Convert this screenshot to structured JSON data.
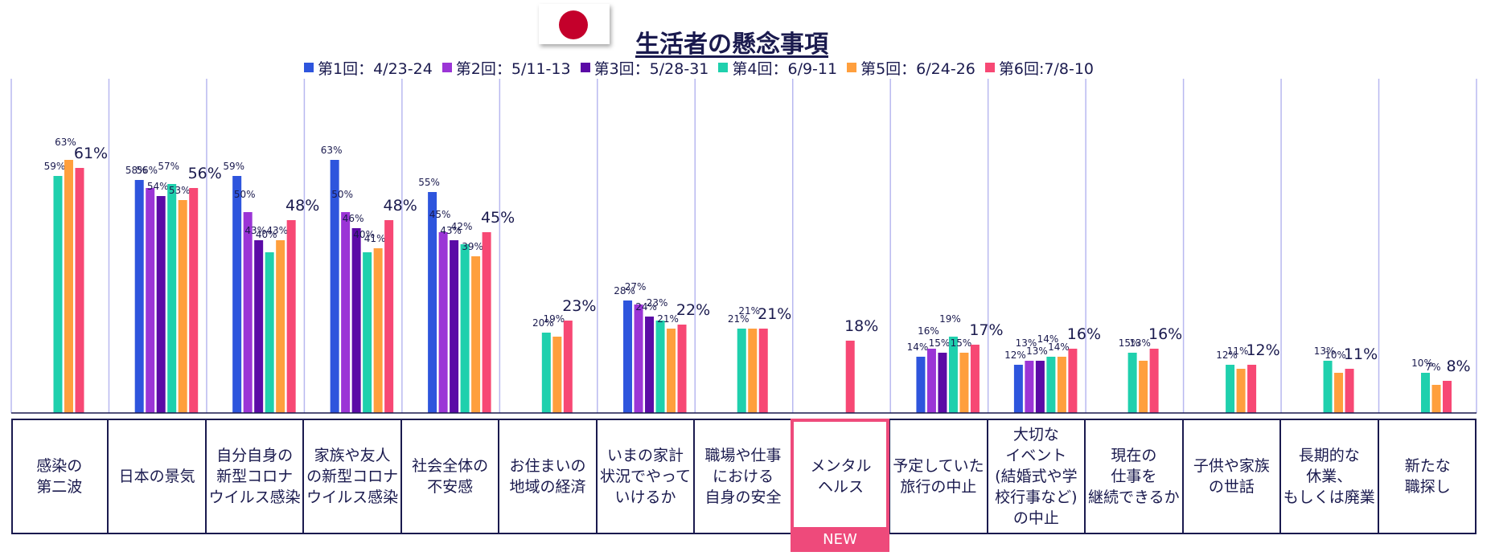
{
  "title": "生活者の懸念事項",
  "flag_icon": "japan-flag-icon",
  "chart_data": {
    "type": "bar",
    "title": "生活者の懸念事項",
    "legend_position": "top",
    "ylim": [
      0,
      80
    ],
    "grid": true,
    "series": [
      {
        "name": "第1回：4/23-24",
        "color": "#2e55dd",
        "values": [
          null,
          58,
          59,
          63,
          55,
          null,
          28,
          null,
          null,
          14,
          12,
          null,
          null,
          null,
          null
        ]
      },
      {
        "name": "第2回：5/11-13",
        "color": "#9b35d6",
        "values": [
          null,
          56,
          50,
          50,
          45,
          null,
          27,
          null,
          null,
          16,
          13,
          null,
          null,
          null,
          null
        ]
      },
      {
        "name": "第3回：5/28-31",
        "color": "#5b0aa6",
        "values": [
          null,
          54,
          43,
          46,
          43,
          null,
          24,
          null,
          null,
          15,
          13,
          null,
          null,
          null,
          null
        ]
      },
      {
        "name": "第4回：6/9-11",
        "color": "#1fd0ad",
        "values": [
          59,
          57,
          40,
          40,
          42,
          20,
          23,
          21,
          null,
          19,
          14,
          15,
          12,
          13,
          10
        ]
      },
      {
        "name": "第5回：6/24-26",
        "color": "#ff9f3d",
        "values": [
          63,
          53,
          43,
          41,
          39,
          19,
          21,
          21,
          null,
          15,
          14,
          13,
          11,
          10,
          7
        ]
      },
      {
        "name": "第6回:7/8-10",
        "color": "#f74874",
        "values": [
          61,
          56,
          48,
          48,
          45,
          23,
          22,
          21,
          18,
          17,
          16,
          16,
          12,
          11,
          8
        ]
      }
    ],
    "categories": [
      "感染の\n第二波",
      "日本の景気",
      "自分自身の\n新型コロナ\nウイルス感染",
      "家族や友人\nの新型コロナ\nウイルス感染",
      "社会全体の\n不安感",
      "お住まいの\n地域の経済",
      "いまの家計\n状況でやって\nいけるか",
      "職場や仕事\nにおける\n自身の安全",
      "メンタル\nヘルス",
      "予定していた\n旅行の中止",
      "大切な\nイベント\n(結婚式や学\n校行事など)\nの中止",
      "現在の\n仕事を\n継続できるか",
      "子供や家族\nの世話",
      "長期的な\n休業、\nもしくは廃業",
      "新たな\n職探し"
    ],
    "highlight": {
      "category_index": 8,
      "badge": "NEW",
      "color": "#ee4a7b"
    }
  },
  "axis_color": "#1a1a4e",
  "grid_color": "#b8b8f0"
}
